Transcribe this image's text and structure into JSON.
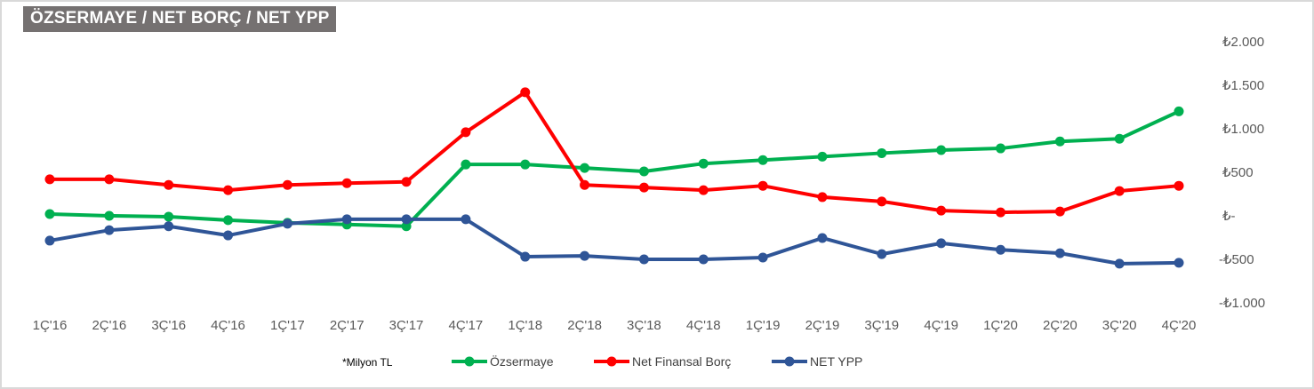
{
  "chart_data": {
    "type": "line",
    "title": "ÖZSERMAYE / NET BORÇ / NET YPP",
    "note": "*Milyon TL",
    "categories": [
      "1Ç'16",
      "2Ç'16",
      "3Ç'16",
      "4Ç'16",
      "1Ç'17",
      "2Ç'17",
      "3Ç'17",
      "4Ç'17",
      "1Ç'18",
      "2Ç'18",
      "3Ç'18",
      "4Ç'18",
      "1Ç'19",
      "2Ç'19",
      "3Ç'19",
      "4Ç'19",
      "1Ç'20",
      "2Ç'20",
      "3Ç'20",
      "4Ç'20"
    ],
    "series": [
      {
        "name": "Özsermaye",
        "color": "#00b050",
        "values": [
          20,
          0,
          -10,
          -50,
          -80,
          -100,
          -120,
          590,
          590,
          550,
          510,
          600,
          640,
          680,
          720,
          755,
          775,
          855,
          885,
          1200
        ]
      },
      {
        "name": "Net Finansal Borç",
        "color": "#ff0000",
        "values": [
          420,
          420,
          355,
          295,
          355,
          375,
          390,
          960,
          1420,
          355,
          325,
          295,
          345,
          215,
          165,
          60,
          40,
          50,
          285,
          345
        ]
      },
      {
        "name": "NET YPP",
        "color": "#2f5597",
        "values": [
          -285,
          -165,
          -120,
          -225,
          -90,
          -40,
          -40,
          -40,
          -470,
          -460,
          -500,
          -500,
          -480,
          -255,
          -440,
          -315,
          -390,
          -430,
          -550,
          -540
        ]
      }
    ],
    "ylim": [
      -1000,
      2000
    ],
    "yticks": [
      2000,
      1500,
      1000,
      500,
      0,
      -500,
      -1000
    ],
    "ytick_labels": [
      "₺2.000",
      "₺1.500",
      "₺1.000",
      "₺500",
      "₺-",
      "-₺500",
      "-₺1.000"
    ],
    "y_axis_side": "right",
    "grid": false,
    "legend_position": "bottom"
  }
}
